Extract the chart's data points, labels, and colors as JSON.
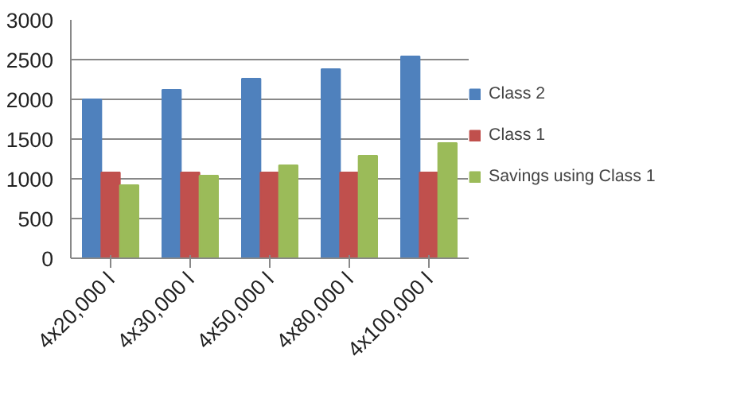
{
  "chart_data": {
    "type": "bar",
    "categories": [
      "4x20,000 l",
      "4x30,000 l",
      "4x50,000 l",
      "4x80,000 l",
      "4x100,000 l"
    ],
    "series": [
      {
        "name": "Class 2",
        "color": "#4f81bd",
        "values": [
          2000,
          2120,
          2260,
          2380,
          2540
        ]
      },
      {
        "name": "Class 1",
        "color": "#c0504d",
        "values": [
          1080,
          1080,
          1080,
          1080,
          1080
        ]
      },
      {
        "name": "Savings using Class 1",
        "color": "#9bbb59",
        "values": [
          920,
          1040,
          1170,
          1290,
          1450
        ]
      }
    ],
    "ylim": [
      0,
      3000
    ],
    "yticks": [
      0,
      500,
      1000,
      1500,
      2000,
      2500,
      3000
    ],
    "grid": "y",
    "legend": "right"
  }
}
